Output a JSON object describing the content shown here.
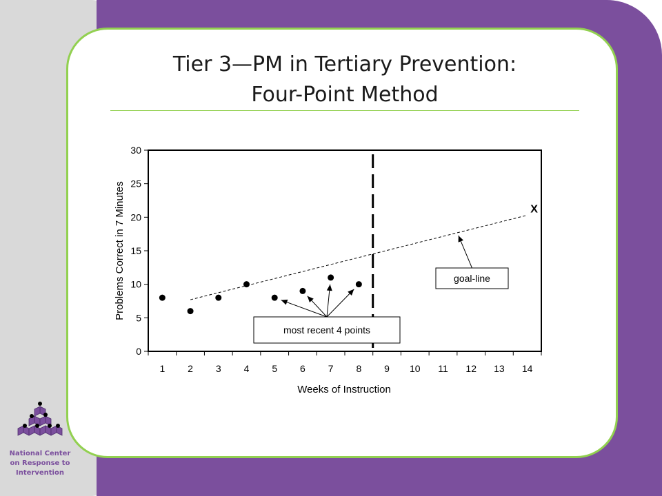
{
  "slide": {
    "title_line1": "Tier 3—PM in Tertiary Prevention:",
    "title_line2": "Four-Point Method"
  },
  "org": {
    "line1": "National Center",
    "line2": "on Response to",
    "line3": "Intervention"
  },
  "colors": {
    "purple": "#7b4f9d",
    "green_border": "#92d050",
    "sidebar_gray": "#d9d9d9"
  },
  "chart_data": {
    "type": "scatter",
    "xlabel": "Weeks of Instruction",
    "ylabel": "Problems Correct in 7 Minutes",
    "x_ticks": [
      1,
      2,
      3,
      4,
      5,
      6,
      7,
      8,
      9,
      10,
      11,
      12,
      13,
      14
    ],
    "y_ticks": [
      0,
      5,
      10,
      15,
      20,
      25,
      30
    ],
    "xlim": [
      0.5,
      14.5
    ],
    "ylim": [
      0,
      30
    ],
    "series": [
      {
        "x": [
          1,
          2,
          3,
          4,
          5,
          6,
          7,
          8
        ],
        "y": [
          8,
          6,
          8,
          10,
          8,
          9,
          11,
          10
        ]
      }
    ],
    "goal_line": {
      "x": [
        2,
        14
      ],
      "y": [
        7.7,
        20.3
      ]
    },
    "goal_marker": {
      "label": "X",
      "x": 14,
      "y": 20.3
    },
    "phase_line_x": 8.5,
    "annotations": {
      "recent_points_label": "most recent 4 points",
      "goal_line_label": "goal-line"
    }
  }
}
